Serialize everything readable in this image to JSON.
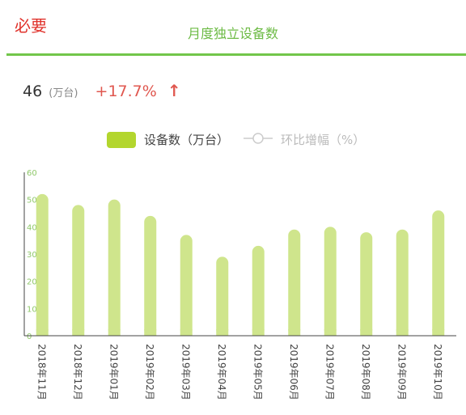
{
  "header": {
    "corner_label": "必要",
    "title": "月度独立设备数"
  },
  "kpi": {
    "value": "46",
    "unit": "(万台)",
    "change": "+17.7%",
    "arrow_icon": "arrow-up-icon"
  },
  "legend": {
    "bar_label": "设备数（万台）",
    "line_label": "环比增幅（%）"
  },
  "colors": {
    "accent_green": "#72c64a",
    "bar_fill": "#cfe58c",
    "legend_swatch": "#b3d62e",
    "change_red": "#e0574f"
  },
  "chart_data": {
    "type": "bar",
    "categories": [
      "2018年11月",
      "2018年12月",
      "2019年01月",
      "2019年02月",
      "2019年03月",
      "2019年04月",
      "2019年05月",
      "2019年06月",
      "2019年07月",
      "2019年08月",
      "2019年09月",
      "2019年10月"
    ],
    "series": [
      {
        "name": "设备数（万台）",
        "values": [
          52,
          48,
          50,
          44,
          37,
          29,
          33,
          39,
          40,
          38,
          39,
          46
        ]
      }
    ],
    "yticks": [
      "0",
      "10",
      "20",
      "30",
      "40",
      "50",
      "60"
    ],
    "ylim": [
      0,
      60
    ],
    "grid": false,
    "legend_position": "top"
  }
}
